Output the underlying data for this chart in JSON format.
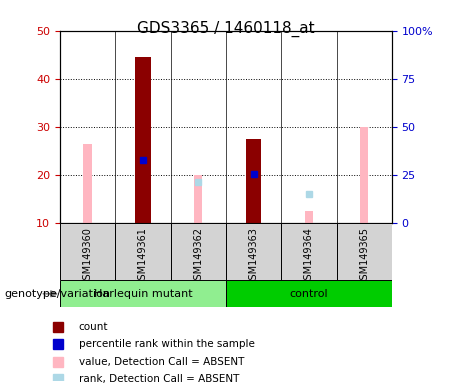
{
  "title": "GDS3365 / 1460118_at",
  "samples": [
    "GSM149360",
    "GSM149361",
    "GSM149362",
    "GSM149363",
    "GSM149364",
    "GSM149365"
  ],
  "ylim_left": [
    10,
    50
  ],
  "ylim_right": [
    0,
    100
  ],
  "yticks_left": [
    10,
    20,
    30,
    40,
    50
  ],
  "yticks_right": [
    0,
    25,
    50,
    75,
    100
  ],
  "ytick_labels_right": [
    "0",
    "25",
    "50",
    "75",
    "100%"
  ],
  "count_values": [
    null,
    44.5,
    null,
    27.5,
    null,
    null
  ],
  "percentile_rank_values": [
    null,
    23.0,
    null,
    20.2,
    null,
    null
  ],
  "absent_value_values": [
    26.5,
    null,
    20.0,
    null,
    12.5,
    30.0
  ],
  "absent_rank_values": [
    null,
    null,
    18.5,
    null,
    16.0,
    null
  ],
  "bar_width": 0.28,
  "count_color": "#8B0000",
  "percentile_color": "#0000CD",
  "absent_value_color": "#FFB6C1",
  "absent_rank_color": "#ADD8E6",
  "group_color_harlequin": "#90EE90",
  "group_color_control": "#00CC00",
  "label_color_left": "#CC0000",
  "label_color_right": "#0000CD",
  "bg_color": "#D3D3D3",
  "plot_bg": "#FFFFFF",
  "legend_items": [
    {
      "label": "count",
      "color": "#8B0000"
    },
    {
      "label": "percentile rank within the sample",
      "color": "#0000CD"
    },
    {
      "label": "value, Detection Call = ABSENT",
      "color": "#FFB6C1"
    },
    {
      "label": "rank, Detection Call = ABSENT",
      "color": "#ADD8E6"
    }
  ]
}
